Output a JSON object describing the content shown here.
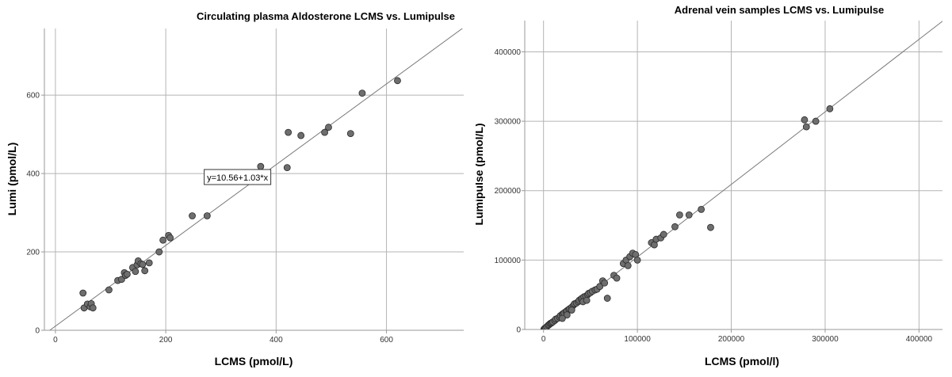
{
  "chart_data": [
    {
      "type": "scatter",
      "title": "Circulating plasma Aldosterone LCMS vs. Lumipulse",
      "xlabel": "LCMS (pmol/L)",
      "ylabel": "Lumi (pmol/L)",
      "xlim": [
        -20,
        740
      ],
      "ylim": [
        0,
        770
      ],
      "xticks": [
        0,
        200,
        400,
        600
      ],
      "yticks": [
        0,
        200,
        400,
        600
      ],
      "xtick_labels": [
        "0",
        "200",
        "400",
        "600"
      ],
      "ytick_labels": [
        "0",
        "200",
        "400",
        "600"
      ],
      "grid": true,
      "fit_line": {
        "intercept": 10.56,
        "slope": 1.03,
        "x_range": [
          -10,
          740
        ]
      },
      "fit_label": "y=10.56+1.03*x",
      "fit_label_anchor": [
        330,
        390
      ],
      "points": [
        [
          50,
          95
        ],
        [
          52,
          57
        ],
        [
          58,
          67
        ],
        [
          63,
          60
        ],
        [
          65,
          68
        ],
        [
          68,
          57
        ],
        [
          97,
          103
        ],
        [
          113,
          127
        ],
        [
          120,
          130
        ],
        [
          125,
          147
        ],
        [
          127,
          140
        ],
        [
          130,
          143
        ],
        [
          140,
          160
        ],
        [
          145,
          150
        ],
        [
          148,
          167
        ],
        [
          150,
          177
        ],
        [
          155,
          170
        ],
        [
          158,
          168
        ],
        [
          162,
          152
        ],
        [
          170,
          172
        ],
        [
          188,
          200
        ],
        [
          195,
          230
        ],
        [
          205,
          242
        ],
        [
          208,
          236
        ],
        [
          248,
          292
        ],
        [
          275,
          292
        ],
        [
          372,
          418
        ],
        [
          420,
          415
        ],
        [
          422,
          505
        ],
        [
          445,
          497
        ],
        [
          488,
          505
        ],
        [
          495,
          518
        ],
        [
          535,
          502
        ],
        [
          556,
          605
        ],
        [
          620,
          637
        ]
      ]
    },
    {
      "type": "scatter",
      "title": "Adrenal vein samples LCMS vs. Lumipulse",
      "xlabel": "LCMS (pmol/l)",
      "ylabel": "Lumipulse (pmol/L)",
      "xlim": [
        -20000,
        425000
      ],
      "ylim": [
        0,
        445000
      ],
      "xticks": [
        0,
        100000,
        200000,
        300000,
        400000
      ],
      "yticks": [
        0,
        100000,
        200000,
        300000,
        400000
      ],
      "xtick_labels": [
        "0",
        "100000",
        "200000",
        "300000",
        "400000"
      ],
      "ytick_labels": [
        "0",
        "100000",
        "200000",
        "300000",
        "400000"
      ],
      "grid": true,
      "fit_line": {
        "intercept": 0,
        "slope": 1.045,
        "x_range": [
          -10000,
          425000
        ]
      },
      "points": [
        [
          500,
          500
        ],
        [
          1500,
          1800
        ],
        [
          2500,
          2000
        ],
        [
          3500,
          4000
        ],
        [
          5000,
          6000
        ],
        [
          6000,
          7000
        ],
        [
          7000,
          8500
        ],
        [
          8000,
          9000
        ],
        [
          9000,
          10000
        ],
        [
          10000,
          11000
        ],
        [
          12000,
          13000
        ],
        [
          13000,
          15000
        ],
        [
          15000,
          16000
        ],
        [
          17000,
          18000
        ],
        [
          18000,
          20000
        ],
        [
          20000,
          22000
        ],
        [
          21000,
          23000
        ],
        [
          22000,
          24000
        ],
        [
          24000,
          26000
        ],
        [
          25000,
          27000
        ],
        [
          27000,
          29000
        ],
        [
          28000,
          30000
        ],
        [
          30000,
          32000
        ],
        [
          32000,
          35000
        ],
        [
          33000,
          37000
        ],
        [
          35000,
          38000
        ],
        [
          37000,
          40000
        ],
        [
          38000,
          42000
        ],
        [
          40000,
          44000
        ],
        [
          41000,
          45000
        ],
        [
          43000,
          47000
        ],
        [
          45000,
          48000
        ],
        [
          47000,
          50000
        ],
        [
          48000,
          52000
        ],
        [
          50000,
          53000
        ],
        [
          52000,
          55000
        ],
        [
          55000,
          57000
        ],
        [
          57000,
          58000
        ],
        [
          42000,
          40000
        ],
        [
          46000,
          42000
        ],
        [
          30000,
          28000
        ],
        [
          25000,
          21000
        ],
        [
          20000,
          16000
        ],
        [
          60000,
          62000
        ],
        [
          63000,
          70000
        ],
        [
          65000,
          67000
        ],
        [
          68000,
          45000
        ],
        [
          75000,
          78000
        ],
        [
          78000,
          74000
        ],
        [
          85000,
          95000
        ],
        [
          88000,
          100000
        ],
        [
          90000,
          92000
        ],
        [
          92000,
          105000
        ],
        [
          95000,
          110000
        ],
        [
          98000,
          108000
        ],
        [
          100000,
          100000
        ],
        [
          115000,
          125000
        ],
        [
          118000,
          122000
        ],
        [
          120000,
          130000
        ],
        [
          125000,
          132000
        ],
        [
          128000,
          137000
        ],
        [
          140000,
          148000
        ],
        [
          145000,
          165000
        ],
        [
          155000,
          165000
        ],
        [
          168000,
          173000
        ],
        [
          178000,
          147000
        ],
        [
          278000,
          302000
        ],
        [
          280000,
          292000
        ],
        [
          290000,
          300000
        ],
        [
          305000,
          318000
        ]
      ]
    }
  ]
}
